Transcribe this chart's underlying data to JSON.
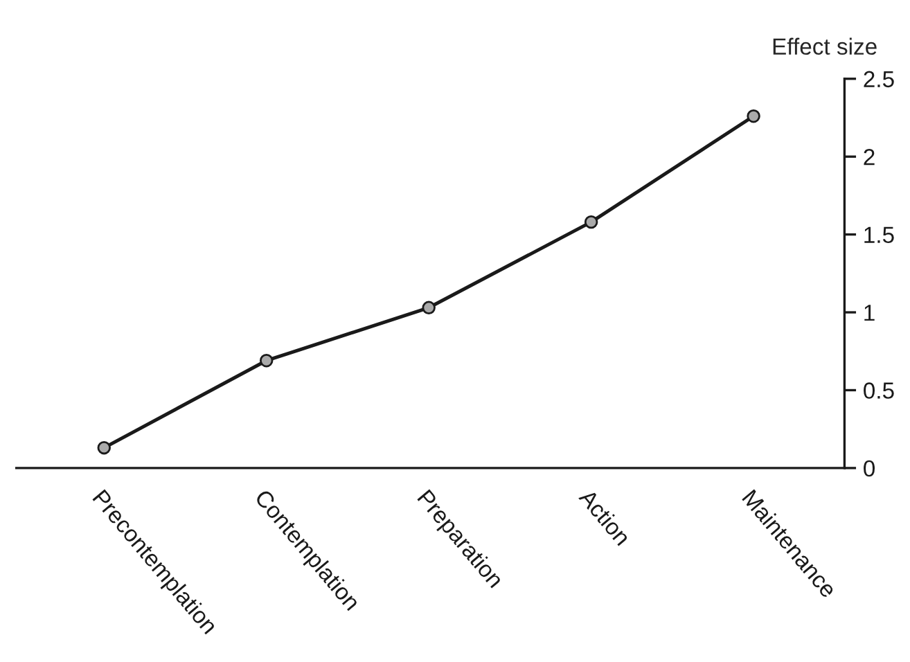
{
  "chart_data": {
    "type": "line",
    "ylabel": "Effect size",
    "categories": [
      "Precontemplation",
      "Contemplation",
      "Preparation",
      "Action",
      "Maintenance"
    ],
    "series": [
      {
        "color": "#1a1a1a",
        "values": [
          0.13,
          0.69,
          1.03,
          1.58,
          2.26
        ]
      }
    ],
    "ylim": [
      0,
      2.5
    ],
    "yticks": [
      0,
      0.5,
      1,
      1.5,
      2,
      2.5
    ],
    "marker": "circle",
    "line_style": "solid",
    "grid": false,
    "legend": false
  }
}
